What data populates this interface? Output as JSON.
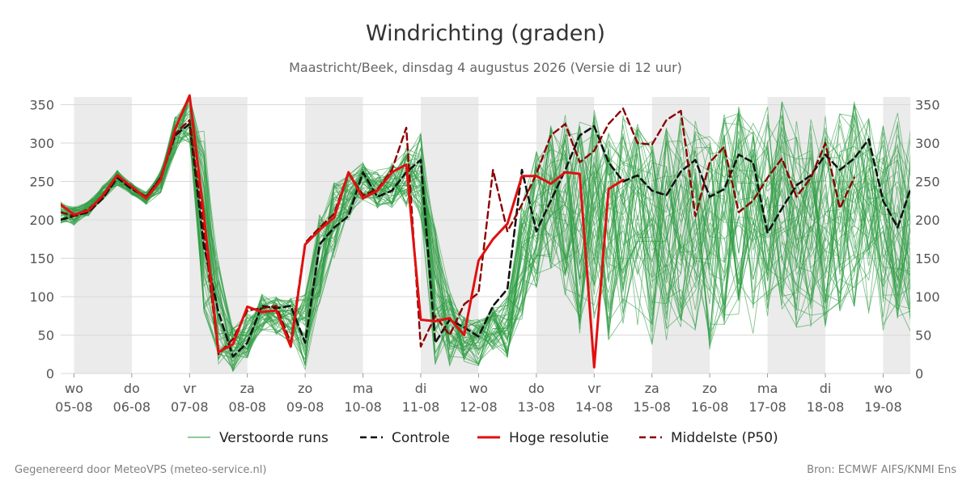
{
  "title": "Windrichting (graden)",
  "subtitle": "Maastricht/Beek, dinsdag  4 augustus 2026 (Versie di 12 uur)",
  "footer": {
    "left": "Gegenereerd door MeteoVPS (meteo-service.nl)",
    "right": "Bron: ECMWF AIFS/KNMI Ens"
  },
  "colors": {
    "perturbed": "#2e9c43",
    "control": "#111111",
    "hires": "#e01010",
    "median": "#8b0000",
    "weekend_band": "#ebebeb",
    "grid": "#d8d8d8",
    "text": "#555555"
  },
  "chart_data": {
    "type": "line",
    "title": "Windrichting (graden)",
    "ylim": [
      0,
      360
    ],
    "xlim": [
      -0.23,
      14.47
    ],
    "yticks": [
      0,
      50,
      100,
      150,
      200,
      250,
      300,
      350
    ],
    "grid": "horizontal",
    "legend_position": "bottom",
    "x_ticks": [
      {
        "x": 0,
        "day": "wo",
        "date": "05-08"
      },
      {
        "x": 1,
        "day": "do",
        "date": "06-08"
      },
      {
        "x": 2,
        "day": "vr",
        "date": "07-08"
      },
      {
        "x": 3,
        "day": "za",
        "date": "08-08"
      },
      {
        "x": 4,
        "day": "zo",
        "date": "09-08"
      },
      {
        "x": 5,
        "day": "ma",
        "date": "10-08"
      },
      {
        "x": 6,
        "day": "di",
        "date": "11-08"
      },
      {
        "x": 7,
        "day": "wo",
        "date": "12-08"
      },
      {
        "x": 8,
        "day": "do",
        "date": "13-08"
      },
      {
        "x": 9,
        "day": "vr",
        "date": "14-08"
      },
      {
        "x": 10,
        "day": "za",
        "date": "15-08"
      },
      {
        "x": 11,
        "day": "zo",
        "date": "16-08"
      },
      {
        "x": 12,
        "day": "ma",
        "date": "17-08"
      },
      {
        "x": 13,
        "day": "di",
        "date": "18-08"
      },
      {
        "x": 14,
        "day": "wo",
        "date": "19-08"
      }
    ],
    "bands": [
      [
        0,
        1
      ],
      [
        2,
        3
      ],
      [
        4,
        5
      ],
      [
        6,
        7
      ],
      [
        8,
        9
      ],
      [
        10,
        11
      ],
      [
        12,
        13
      ],
      [
        14,
        14.47
      ]
    ],
    "legend": [
      {
        "label": "Verstoorde runs",
        "style": "perturbed"
      },
      {
        "label": "Controle",
        "style": "control"
      },
      {
        "label": "Hoge resolutie",
        "style": "hires"
      },
      {
        "label": "Middelste (P50)",
        "style": "median"
      }
    ],
    "perturbed": {
      "name": "Verstoorde runs",
      "members": 50,
      "x_start": -0.25,
      "step": 0.25,
      "anchor": [
        210,
        205,
        215,
        235,
        255,
        240,
        228,
        250,
        310,
        340,
        200,
        80,
        30,
        50,
        80,
        75,
        70,
        55,
        150,
        200,
        230,
        250,
        240,
        245,
        255,
        260,
        100,
        60,
        45,
        40,
        60,
        60,
        150,
        200,
        230,
        220,
        190,
        210,
        180,
        200,
        190,
        170,
        180,
        200,
        190,
        170,
        200,
        210,
        190,
        210,
        220,
        200,
        200,
        200,
        210,
        220,
        200,
        190,
        200,
        190,
        200
      ],
      "spread": [
        15,
        12,
        10,
        10,
        10,
        8,
        8,
        15,
        25,
        40,
        120,
        70,
        30,
        30,
        25,
        25,
        30,
        50,
        60,
        50,
        30,
        25,
        25,
        30,
        40,
        60,
        90,
        50,
        30,
        30,
        30,
        40,
        80,
        90,
        100,
        120,
        140,
        140,
        140,
        140,
        140,
        140,
        140,
        140,
        140,
        140,
        140,
        140,
        140,
        140,
        140,
        140,
        140,
        140,
        140,
        140,
        140,
        140,
        140,
        140,
        140
      ]
    },
    "series": [
      {
        "name": "Controle",
        "style": "control",
        "x_start": -0.25,
        "step": 0.25,
        "values": [
          200,
          205,
          210,
          228,
          255,
          240,
          230,
          255,
          310,
          325,
          165,
          80,
          22,
          40,
          88,
          85,
          88,
          40,
          168,
          190,
          205,
          262,
          230,
          238,
          262,
          278,
          40,
          70,
          60,
          48,
          88,
          110,
          265,
          185,
          225,
          265,
          310,
          322,
          275,
          250,
          258,
          238,
          232,
          263,
          278,
          230,
          240,
          285,
          275,
          183,
          215,
          245,
          258,
          285,
          265,
          280,
          305,
          225,
          190,
          240
        ]
      },
      {
        "name": "Hoge resolutie",
        "style": "hires",
        "x_start": -0.25,
        "step": 0.25,
        "values": [
          220,
          207,
          212,
          232,
          258,
          243,
          228,
          252,
          318,
          362,
          205,
          28,
          38,
          87,
          80,
          82,
          35,
          168,
          187,
          203,
          262,
          228,
          238,
          262,
          272,
          70,
          68,
          72,
          50,
          147,
          175,
          195,
          257,
          257,
          247,
          262,
          260,
          8,
          240,
          252
        ]
      },
      {
        "name": "Middelste (P50)",
        "style": "median",
        "x_start": -0.25,
        "step": 0.25,
        "values": [
          210,
          205,
          214,
          230,
          258,
          242,
          230,
          255,
          312,
          330,
          185,
          25,
          45,
          82,
          85,
          88,
          40,
          170,
          190,
          208,
          262,
          232,
          240,
          265,
          320,
          35,
          75,
          50,
          90,
          105,
          265,
          185,
          220,
          260,
          310,
          325,
          275,
          290,
          325,
          345,
          300,
          298,
          330,
          342,
          205,
          275,
          295,
          210,
          225,
          255,
          280,
          230,
          255,
          300,
          215,
          255
        ]
      }
    ]
  }
}
